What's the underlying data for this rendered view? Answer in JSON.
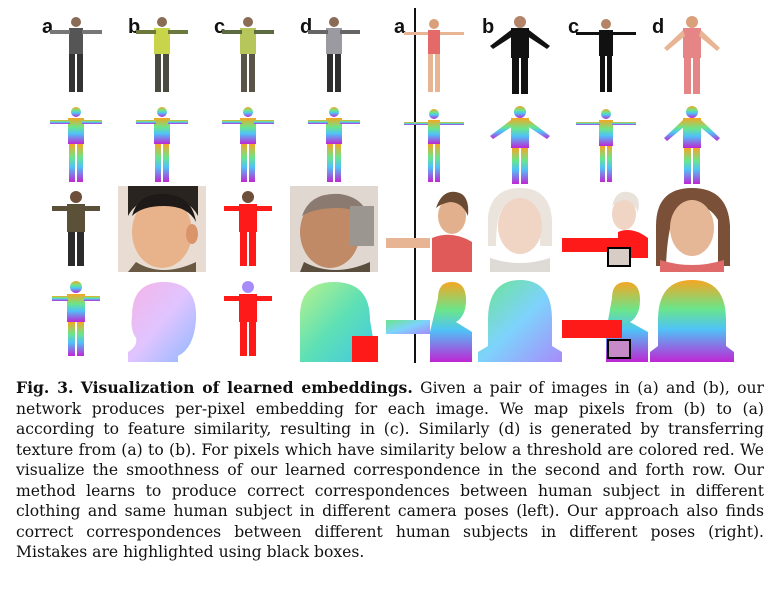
{
  "figure": {
    "left_labels": [
      "a",
      "b",
      "c",
      "d"
    ],
    "right_labels": [
      "a",
      "b",
      "c",
      "d"
    ]
  },
  "caption": {
    "label": "Fig. 3.",
    "title": "Visualization of learned embeddings.",
    "text": "Given a pair of images in (a) and (b), our network produces per-pixel embedding for each image. We map pixels from (b) to (a) according to feature similarity, resulting in (c). Similarly (d) is generated by transferring texture from (a) to (b). For pixels which have similarity below a threshold are colored red. We visualize the smoothness of our learned correspondence in the second and forth row. Our method learns to produce correct correspondences between human subject in different clothing and same human subject in different camera poses (left). Our approach also finds correct correspondences between different human subjects in different poses (right). Mistakes are highlighted using black boxes."
  },
  "colors": {
    "embedding_top": "#f5a623",
    "embedding_mid": "#4fc3f7",
    "embedding_low": "#7c4dff",
    "mismatch": "#ff1a1a"
  }
}
